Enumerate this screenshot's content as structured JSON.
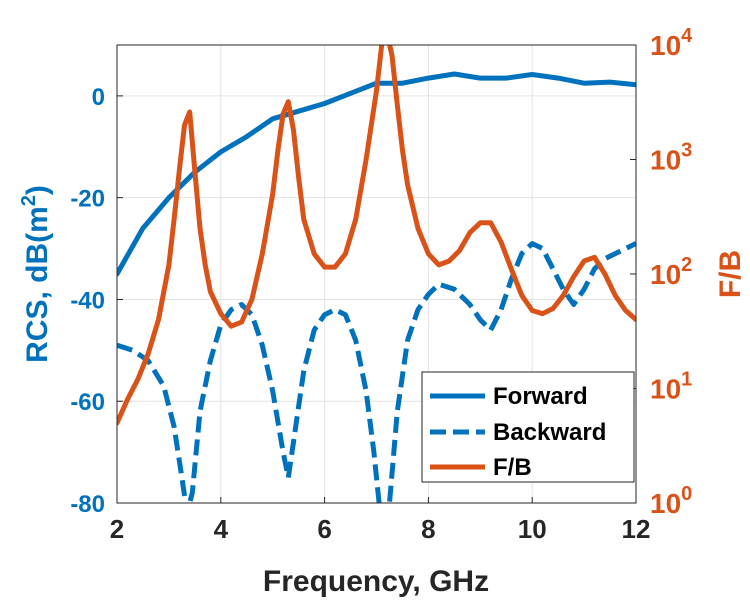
{
  "chart_data": {
    "type": "line",
    "xlabel": "Frequency, GHz",
    "ylabel_left": "RCS, dB(m",
    "ylabel_left_sup": "2",
    "ylabel_left_close": ")",
    "ylabel_right": "F/B",
    "xlim": [
      2,
      12
    ],
    "ylim_left": [
      -80,
      10
    ],
    "ylim_right": [
      1,
      10000
    ],
    "right_scale": "log",
    "x_ticks": [
      2,
      4,
      6,
      8,
      10,
      12
    ],
    "x_tick_labels": [
      "2",
      "4",
      "6",
      "8",
      "10",
      "12"
    ],
    "y_left_ticks": [
      0,
      -20,
      -40,
      -60,
      -80
    ],
    "y_left_tick_labels": [
      "0",
      "-20",
      "-40",
      "-60",
      "-80"
    ],
    "y_right_ticks": [
      1,
      10,
      100,
      1000,
      10000
    ],
    "y_right_tick_base": [
      "10",
      "10",
      "10",
      "10",
      "10"
    ],
    "y_right_tick_exp": [
      "0",
      "1",
      "2",
      "3",
      "4"
    ],
    "grid": true,
    "legend_position": "bottom-right",
    "colors": {
      "blue": "#0072BD",
      "orange": "#D95319",
      "grid": "#e3e3e3",
      "axis": "#262626"
    },
    "series": [
      {
        "name": "Forward",
        "axis": "left",
        "style": "solid",
        "color": "#0072BD",
        "x": [
          2,
          2.5,
          3,
          3.5,
          4,
          4.5,
          5,
          5.5,
          6,
          6.5,
          7,
          7.5,
          8,
          8.5,
          9,
          9.5,
          10,
          10.5,
          11,
          11.5,
          12
        ],
        "y": [
          -35,
          -26,
          -20,
          -15,
          -11,
          -8,
          -4.5,
          -3,
          -1.5,
          0.5,
          2.5,
          2.5,
          3.5,
          4.3,
          3.5,
          3.5,
          4.2,
          3.5,
          2.5,
          2.7,
          2.2
        ]
      },
      {
        "name": "Backward",
        "axis": "left",
        "style": "dashed",
        "color": "#0072BD",
        "x": [
          2,
          2.3,
          2.6,
          2.9,
          3.1,
          3.25,
          3.35,
          3.45,
          3.6,
          3.8,
          4.0,
          4.2,
          4.4,
          4.6,
          4.8,
          5.0,
          5.2,
          5.3,
          5.4,
          5.6,
          5.8,
          6.0,
          6.2,
          6.4,
          6.6,
          6.8,
          6.95,
          7.05,
          7.15,
          7.25,
          7.4,
          7.6,
          7.8,
          8.0,
          8.2,
          8.5,
          8.8,
          9.0,
          9.2,
          9.4,
          9.6,
          9.8,
          10.0,
          10.2,
          10.4,
          10.6,
          10.8,
          11.0,
          11.2,
          11.4,
          11.6,
          11.8,
          12.0
        ],
        "y": [
          -49,
          -50,
          -52,
          -57,
          -65,
          -75,
          -82,
          -78,
          -62,
          -52,
          -45,
          -42,
          -41,
          -43,
          -49,
          -58,
          -70,
          -75,
          -68,
          -54,
          -46,
          -43,
          -42,
          -43,
          -48,
          -58,
          -70,
          -80,
          -85,
          -80,
          -62,
          -48,
          -42,
          -39,
          -37,
          -38,
          -41,
          -44,
          -46,
          -42,
          -36,
          -31,
          -29,
          -30,
          -34,
          -38,
          -41,
          -38,
          -34,
          -32,
          -31,
          -30,
          -29
        ]
      },
      {
        "name": "F/B",
        "axis": "right",
        "style": "solid",
        "color": "#D95319",
        "x": [
          2,
          2.2,
          2.4,
          2.6,
          2.8,
          3.0,
          3.1,
          3.2,
          3.3,
          3.4,
          3.5,
          3.6,
          3.7,
          3.8,
          4.0,
          4.2,
          4.4,
          4.6,
          4.8,
          5.0,
          5.1,
          5.2,
          5.3,
          5.4,
          5.5,
          5.6,
          5.8,
          6.0,
          6.2,
          6.4,
          6.6,
          6.8,
          7.0,
          7.1,
          7.2,
          7.3,
          7.4,
          7.5,
          7.6,
          7.8,
          8.0,
          8.2,
          8.4,
          8.6,
          8.8,
          9.0,
          9.2,
          9.4,
          9.6,
          9.8,
          10.0,
          10.2,
          10.4,
          10.6,
          10.8,
          11.0,
          11.2,
          11.4,
          11.6,
          11.8,
          12.0
        ],
        "y": [
          5,
          8,
          12,
          20,
          40,
          120,
          300,
          800,
          2000,
          2600,
          800,
          250,
          120,
          70,
          45,
          35,
          38,
          60,
          150,
          500,
          1200,
          2500,
          3200,
          1800,
          700,
          300,
          150,
          115,
          115,
          150,
          300,
          1000,
          4000,
          10000,
          13000,
          8000,
          3000,
          1200,
          600,
          250,
          150,
          120,
          130,
          160,
          230,
          280,
          280,
          190,
          110,
          65,
          48,
          45,
          50,
          65,
          95,
          130,
          140,
          100,
          65,
          48,
          40
        ]
      }
    ]
  }
}
